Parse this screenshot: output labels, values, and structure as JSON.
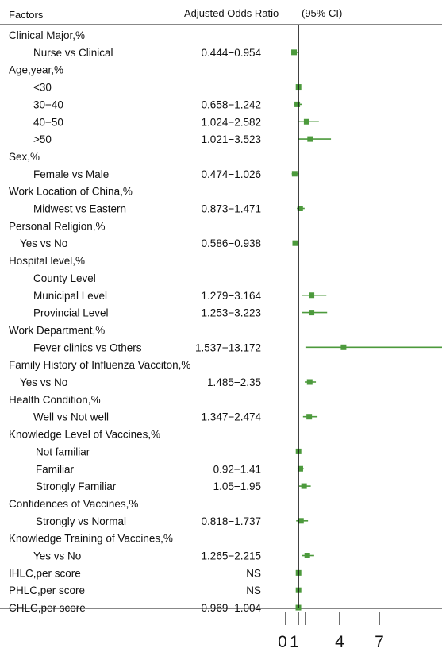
{
  "chart_data": {
    "type": "forest",
    "header": {
      "factors": "Factors",
      "or": "Adjusted Odds Ratio",
      "ci": "(95% CI)"
    },
    "x_ticks": [
      "0",
      "1",
      "4",
      "7"
    ],
    "xlim": [
      -1,
      12
    ],
    "reference_line": 1,
    "marker_color": "#4c9a3c",
    "rows": [
      {
        "label": "Clinical Major,%",
        "indent": 0,
        "ci": "",
        "or": null,
        "lo": null,
        "hi": null
      },
      {
        "label": "Nurse vs Clinical",
        "indent": 2,
        "ci": "0.444−0.954",
        "or": 0.65,
        "lo": 0.444,
        "hi": 0.954
      },
      {
        "label": "Age,year,%",
        "indent": 0,
        "ci": "",
        "or": null,
        "lo": null,
        "hi": null
      },
      {
        "label": "<30",
        "indent": 2,
        "ci": "",
        "or": 1,
        "lo": null,
        "hi": null,
        "ref": true
      },
      {
        "label": "30−40",
        "indent": 2,
        "ci": "0.658−1.242",
        "or": 0.9,
        "lo": 0.658,
        "hi": 1.242
      },
      {
        "label": "40−50",
        "indent": 2,
        "ci": "1.024−2.582",
        "or": 1.63,
        "lo": 1.024,
        "hi": 2.582
      },
      {
        "label": ">50",
        "indent": 2,
        "ci": "1.021−3.523",
        "or": 1.9,
        "lo": 1.021,
        "hi": 3.523
      },
      {
        "label": "Sex,%",
        "indent": 0,
        "ci": "",
        "or": null,
        "lo": null,
        "hi": null
      },
      {
        "label": "Female vs Male",
        "indent": 2,
        "ci": "0.474−1.026",
        "or": 0.7,
        "lo": 0.474,
        "hi": 1.026
      },
      {
        "label": "Work Location of China,%",
        "indent": 0,
        "ci": "",
        "or": null,
        "lo": null,
        "hi": null
      },
      {
        "label": "Midwest vs Eastern",
        "indent": 2,
        "ci": "0.873−1.471",
        "or": 1.13,
        "lo": 0.873,
        "hi": 1.471
      },
      {
        "label": "Personal Religion,%",
        "indent": 0,
        "ci": "",
        "or": null,
        "lo": null,
        "hi": null
      },
      {
        "label": "Yes vs No",
        "indent": 1,
        "ci": "0.586−0.938",
        "or": 0.74,
        "lo": 0.586,
        "hi": 0.938
      },
      {
        "label": "Hospital level,%",
        "indent": 0,
        "ci": "",
        "or": null,
        "lo": null,
        "hi": null
      },
      {
        "label": "County Level",
        "indent": 2,
        "ci": "",
        "or": null,
        "lo": null,
        "hi": null
      },
      {
        "label": "Municipal Level",
        "indent": 2,
        "ci": "1.279−3.164",
        "or": 2.01,
        "lo": 1.279,
        "hi": 3.164
      },
      {
        "label": "Provincial Level",
        "indent": 2,
        "ci": "1.253−3.223",
        "or": 2.01,
        "lo": 1.253,
        "hi": 3.223
      },
      {
        "label": "Work Department,%",
        "indent": 0,
        "ci": "",
        "or": null,
        "lo": null,
        "hi": null
      },
      {
        "label": "Fever clinics  vs Others",
        "indent": 2,
        "ci": "1.537−13.172",
        "or": 4.5,
        "lo": 1.537,
        "hi": 13.172
      },
      {
        "label": "Family History of Influenza Vacciton,%",
        "indent": 0,
        "ci": "",
        "or": null,
        "lo": null,
        "hi": null
      },
      {
        "label": "Yes  vs  No",
        "indent": 1,
        "ci": "1.485−2.35",
        "or": 1.87,
        "lo": 1.485,
        "hi": 2.35
      },
      {
        "label": "Health Condition,%",
        "indent": 0,
        "ci": "",
        "or": null,
        "lo": null,
        "hi": null
      },
      {
        "label": "Well vs Not well",
        "indent": 2,
        "ci": "1.347−2.474",
        "or": 1.83,
        "lo": 1.347,
        "hi": 2.474
      },
      {
        "label": "Knowledge Level of Vaccines,%",
        "indent": 0,
        "ci": "",
        "or": null,
        "lo": null,
        "hi": null
      },
      {
        "label": "Not familiar",
        "indent": 3,
        "ci": "",
        "or": 1,
        "lo": null,
        "hi": null,
        "ref": true
      },
      {
        "label": "Familiar",
        "indent": 3,
        "ci": "0.92−1.41",
        "or": 1.14,
        "lo": 0.92,
        "hi": 1.41
      },
      {
        "label": "Strongly Familiar",
        "indent": 3,
        "ci": "1.05−1.95",
        "or": 1.43,
        "lo": 1.05,
        "hi": 1.95
      },
      {
        "label": "Confidences of Vaccines,%",
        "indent": 0,
        "ci": "",
        "or": null,
        "lo": null,
        "hi": null
      },
      {
        "label": "Strongly vs Normal",
        "indent": 3,
        "ci": "0.818−1.737",
        "or": 1.19,
        "lo": 0.818,
        "hi": 1.737
      },
      {
        "label": "Knowledge Training of Vaccines,%",
        "indent": 0,
        "ci": "",
        "or": null,
        "lo": null,
        "hi": null
      },
      {
        "label": "Yes vs No",
        "indent": 2,
        "ci": "1.265−2.215",
        "or": 1.68,
        "lo": 1.265,
        "hi": 2.215
      },
      {
        "label": "IHLC,per score",
        "indent": 0,
        "ci": "NS",
        "or": 1,
        "lo": null,
        "hi": null
      },
      {
        "label": "PHLC,per score",
        "indent": 0,
        "ci": "NS",
        "or": 1,
        "lo": null,
        "hi": null
      },
      {
        "label": "CHLC,per score",
        "indent": 0,
        "ci": "0.969−1.004",
        "or": 0.99,
        "lo": 0.969,
        "hi": 1.004
      }
    ]
  }
}
